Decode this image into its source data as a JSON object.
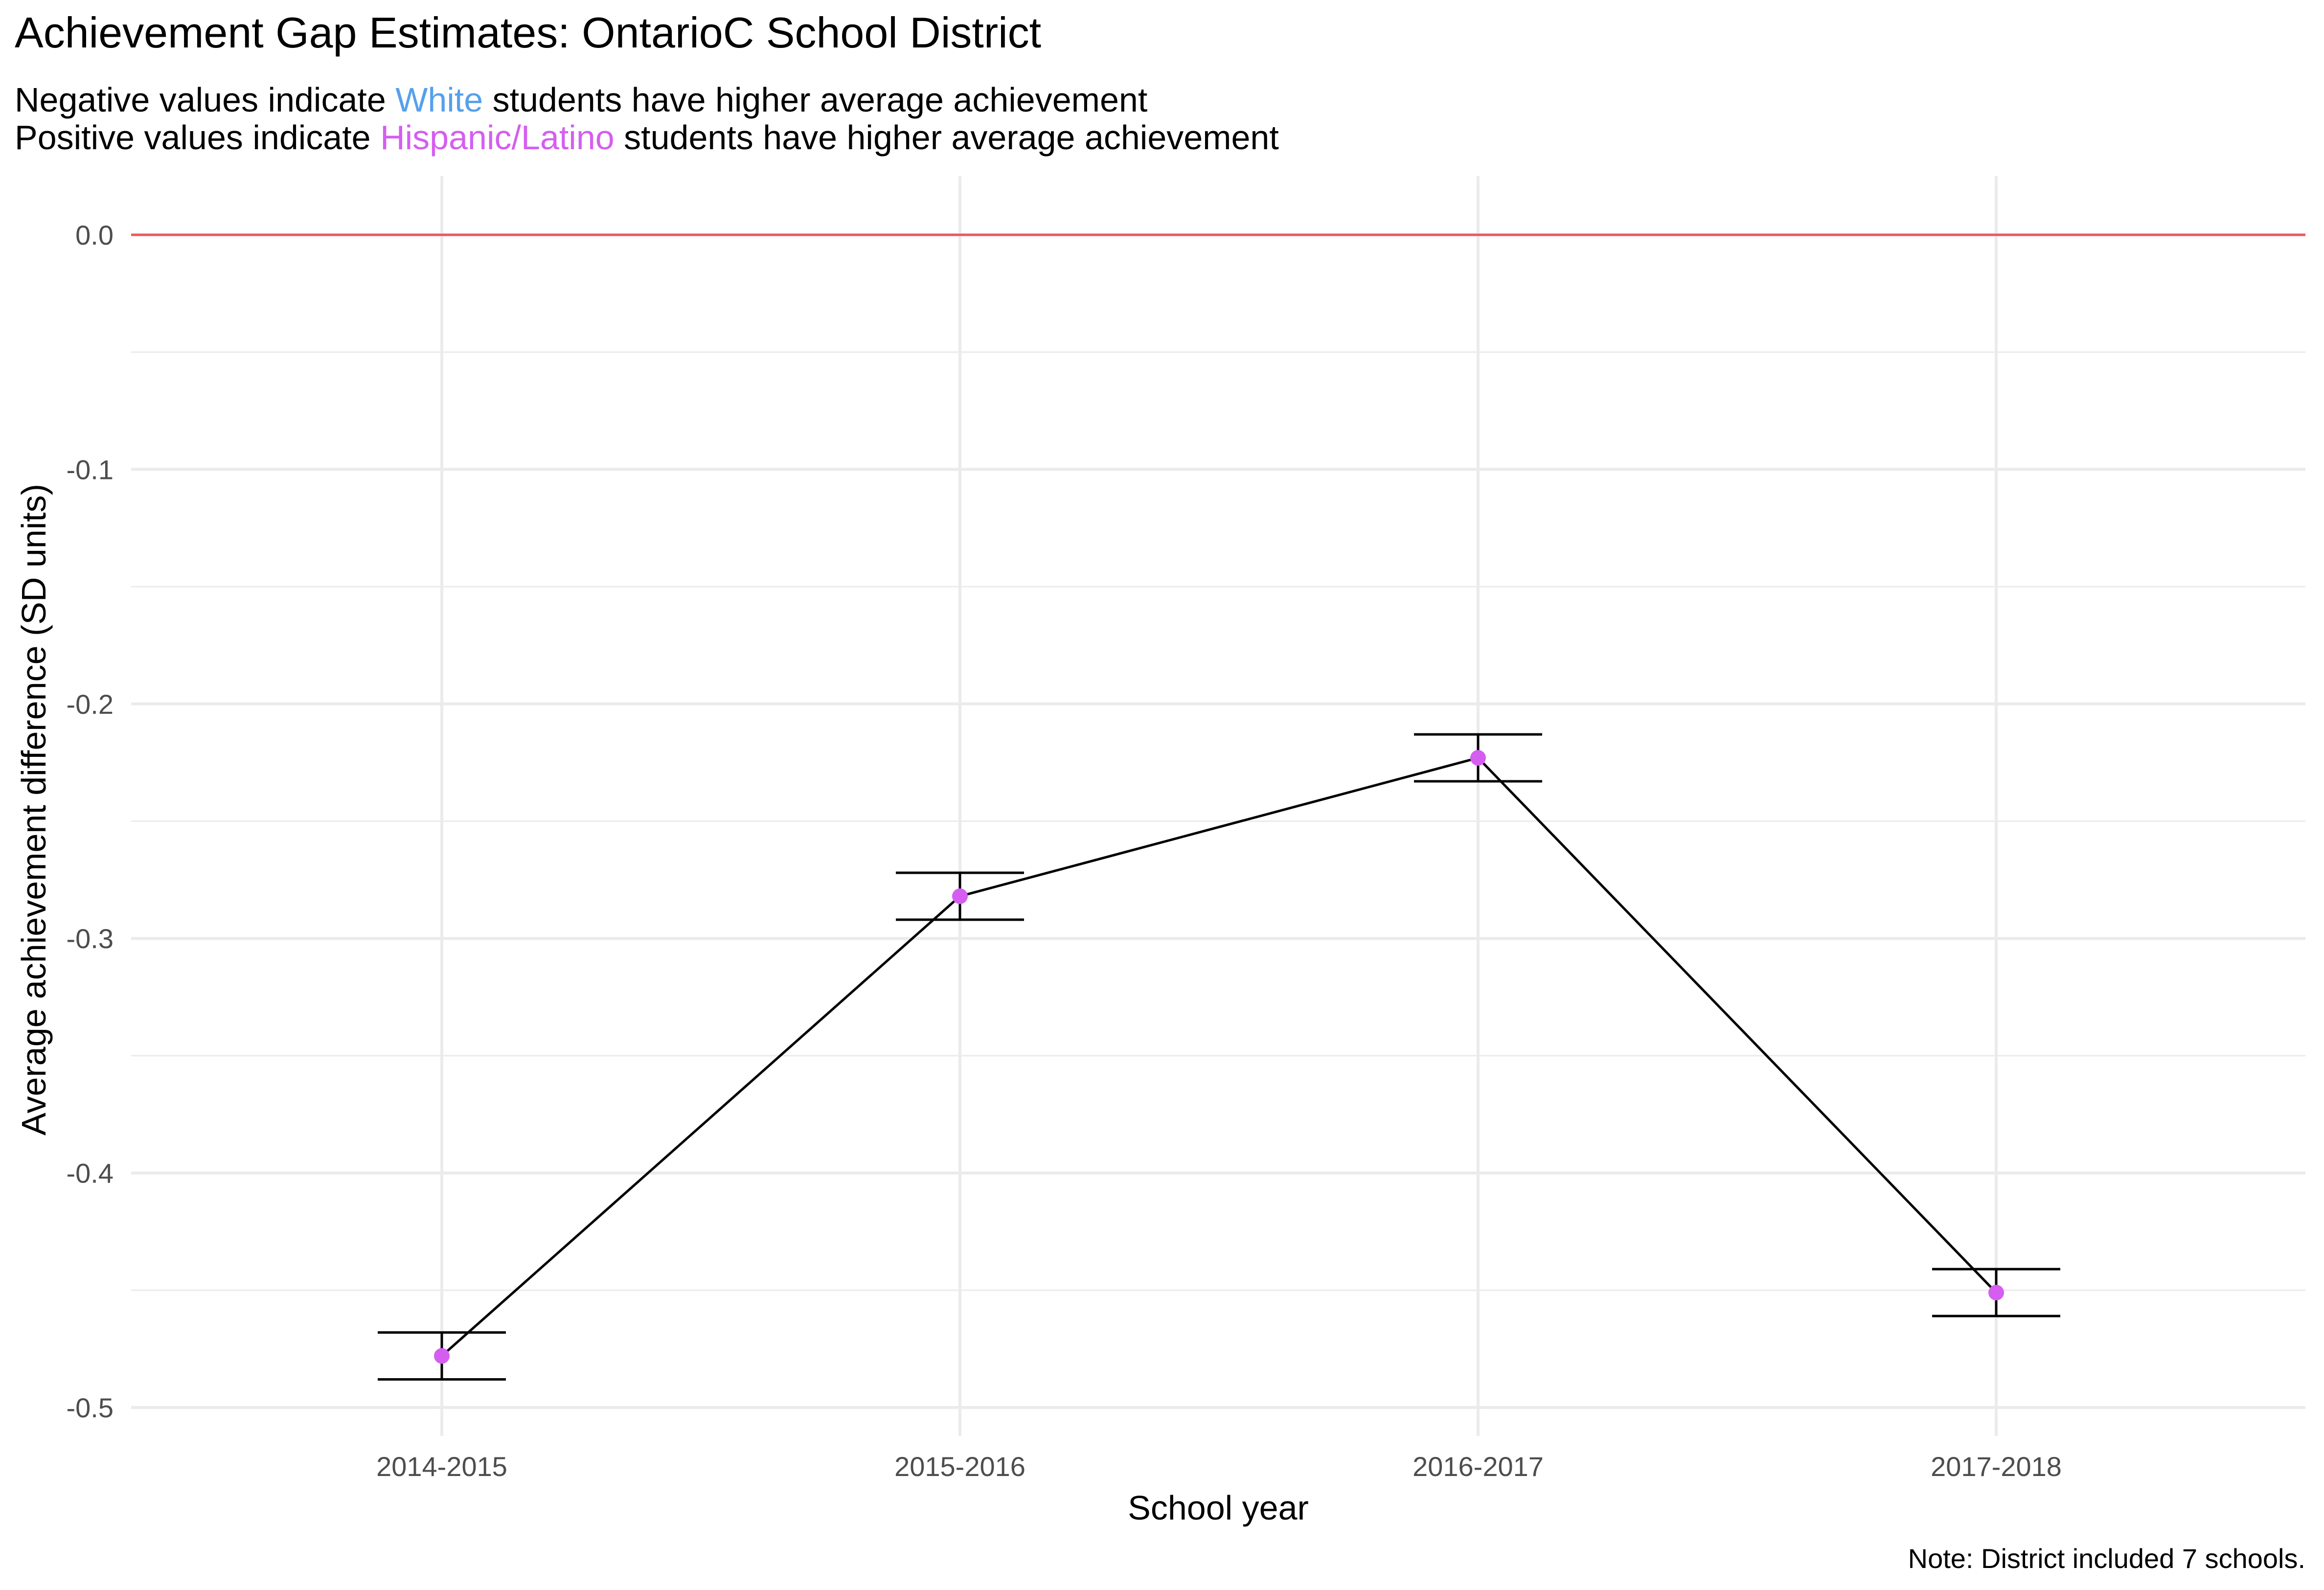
{
  "chart_data": {
    "type": "line",
    "title": "Achievement Gap Estimates: OntarioC School District",
    "subtitle": {
      "line1": {
        "prefix": "Negative values indicate",
        "highlight": "White",
        "suffix": "students have higher average achievement"
      },
      "line2": {
        "prefix": "Positive values indicate",
        "highlight": "Hispanic/Latino",
        "suffix": "students have higher average achievement"
      }
    },
    "xlabel": "School year",
    "ylabel": "Average achievement difference (SD units)",
    "caption": "Note: District included 7 schools.",
    "categories": [
      "2014-2015",
      "2015-2016",
      "2016-2017",
      "2017-2018"
    ],
    "series": [
      {
        "values": [
          -0.478,
          -0.282,
          -0.223,
          -0.451
        ],
        "error_low": [
          -0.488,
          -0.292,
          -0.233,
          -0.461
        ],
        "error_high": [
          -0.468,
          -0.272,
          -0.213,
          -0.441
        ]
      }
    ],
    "yticks": [
      0.0,
      -0.1,
      -0.2,
      -0.3,
      -0.4,
      -0.5
    ],
    "ytick_labels": [
      "0.0",
      "-0.1",
      "-0.2",
      "-0.3",
      "-0.4",
      "-0.5"
    ],
    "ylim": [
      -0.52,
      0.025
    ],
    "reference_line": 0,
    "grid": true,
    "colors": {
      "white": "#56a0ec",
      "hispanic": "#d55ef0",
      "point": "#d55ef0",
      "line": "#000000",
      "reference": "#e8595d",
      "grid": "#ebebeb"
    }
  }
}
